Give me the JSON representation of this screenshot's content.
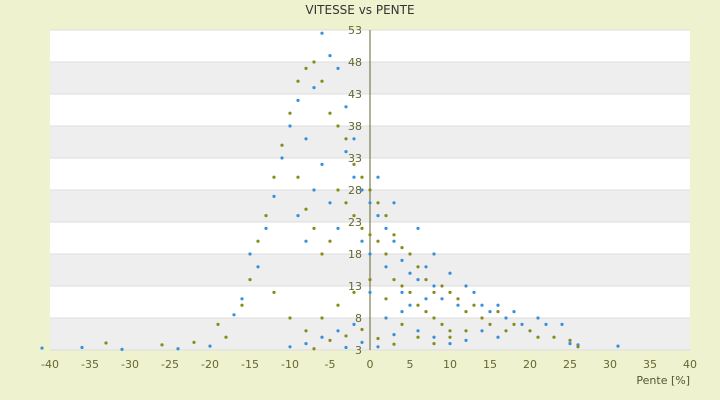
{
  "chart_data": {
    "type": "scatter",
    "title": "VITESSE vs PENTE",
    "xlabel": "Pente [%]",
    "ylabel": "",
    "xlim": [
      -40,
      40
    ],
    "ylim": [
      3,
      53
    ],
    "x_ticks": [
      "-40",
      "-35",
      "-30",
      "-25",
      "-20",
      "-15",
      "-10",
      "-5",
      "0",
      "5",
      "10",
      "15",
      "20",
      "25",
      "30",
      "35",
      "40"
    ],
    "y_ticks": [
      "3",
      "8",
      "13",
      "18",
      "23",
      "28",
      "33",
      "38",
      "43",
      "48",
      "53"
    ],
    "grid": true,
    "legend": "none",
    "colors": {
      "background": "#eef2cf",
      "plot_band_light": "#ffffff",
      "plot_band_dark": "#eeeeee",
      "axis": "#666633",
      "series_a": "#3a8fd9",
      "series_b": "#8a8a1a"
    },
    "series": [
      {
        "color": "#3a8fd9",
        "points": [
          [
            -41,
            3.3
          ],
          [
            -36,
            3.4
          ],
          [
            -31,
            3.1
          ],
          [
            -24,
            3.2
          ],
          [
            -20,
            3.6
          ],
          [
            -17,
            8.5
          ],
          [
            -16,
            11
          ],
          [
            -15,
            18
          ],
          [
            -14,
            16
          ],
          [
            -13,
            22
          ],
          [
            -12,
            27
          ],
          [
            -11,
            33
          ],
          [
            -10,
            38
          ],
          [
            -9,
            42
          ],
          [
            -8,
            36
          ],
          [
            -7,
            44
          ],
          [
            -6,
            52.5
          ],
          [
            -5,
            49
          ],
          [
            -4,
            47
          ],
          [
            -3,
            41
          ],
          [
            -2,
            30
          ],
          [
            -1,
            28
          ],
          [
            0,
            26
          ],
          [
            1,
            24
          ],
          [
            2,
            22
          ],
          [
            3,
            20
          ],
          [
            4,
            17
          ],
          [
            5,
            15
          ],
          [
            6,
            14
          ],
          [
            7,
            16
          ],
          [
            8,
            13
          ],
          [
            9,
            11
          ],
          [
            10,
            15
          ],
          [
            11,
            10
          ],
          [
            12,
            13
          ],
          [
            13,
            12
          ],
          [
            14,
            10
          ],
          [
            15,
            9
          ],
          [
            16,
            10
          ],
          [
            17,
            8
          ],
          [
            18,
            9
          ],
          [
            19,
            7
          ],
          [
            21,
            8
          ],
          [
            22,
            7
          ],
          [
            24,
            7
          ],
          [
            25,
            4
          ],
          [
            26,
            3.8
          ],
          [
            31,
            3.6
          ],
          [
            -9,
            24
          ],
          [
            -8,
            20
          ],
          [
            -7,
            28
          ],
          [
            -6,
            32
          ],
          [
            -5,
            26
          ],
          [
            -4,
            22
          ],
          [
            -3,
            34
          ],
          [
            -2,
            36
          ],
          [
            -1,
            20
          ],
          [
            0,
            18
          ],
          [
            1,
            30
          ],
          [
            2,
            16
          ],
          [
            3,
            26
          ],
          [
            4,
            12
          ],
          [
            5,
            10
          ],
          [
            6,
            22
          ],
          [
            7,
            11
          ],
          [
            8,
            18
          ],
          [
            -10,
            3.5
          ],
          [
            -8,
            4
          ],
          [
            -6,
            5
          ],
          [
            -4,
            6
          ],
          [
            -2,
            7
          ],
          [
            0,
            12
          ],
          [
            2,
            8
          ],
          [
            4,
            9
          ],
          [
            6,
            6
          ],
          [
            8,
            5
          ],
          [
            10,
            4
          ],
          [
            12,
            4.5
          ],
          [
            14,
            6
          ],
          [
            16,
            5
          ],
          [
            -3,
            3.4
          ],
          [
            -1,
            4.2
          ],
          [
            1,
            3.5
          ],
          [
            3,
            5.4
          ]
        ]
      },
      {
        "color": "#8a8a1a",
        "points": [
          [
            -33,
            4.1
          ],
          [
            -26,
            3.8
          ],
          [
            -22,
            4.2
          ],
          [
            -19,
            7
          ],
          [
            -18,
            5
          ],
          [
            -16,
            10
          ],
          [
            -15,
            14
          ],
          [
            -14,
            20
          ],
          [
            -13,
            24
          ],
          [
            -12,
            30
          ],
          [
            -11,
            35
          ],
          [
            -10,
            40
          ],
          [
            -9,
            45
          ],
          [
            -8,
            47
          ],
          [
            -7,
            48
          ],
          [
            -6,
            45
          ],
          [
            -5,
            40
          ],
          [
            -4,
            38
          ],
          [
            -3,
            36
          ],
          [
            -2,
            32
          ],
          [
            -1,
            30
          ],
          [
            0,
            28
          ],
          [
            1,
            26
          ],
          [
            2,
            24
          ],
          [
            3,
            21
          ],
          [
            4,
            19
          ],
          [
            5,
            18
          ],
          [
            6,
            16
          ],
          [
            7,
            14
          ],
          [
            8,
            12
          ],
          [
            9,
            13
          ],
          [
            10,
            12
          ],
          [
            11,
            11
          ],
          [
            12,
            9
          ],
          [
            13,
            10
          ],
          [
            14,
            8
          ],
          [
            15,
            7
          ],
          [
            16,
            9
          ],
          [
            17,
            6
          ],
          [
            18,
            7
          ],
          [
            20,
            6
          ],
          [
            21,
            5
          ],
          [
            23,
            5
          ],
          [
            25,
            4.5
          ],
          [
            26,
            3.5
          ],
          [
            -9,
            30
          ],
          [
            -8,
            25
          ],
          [
            -7,
            22
          ],
          [
            -6,
            18
          ],
          [
            -5,
            20
          ],
          [
            -4,
            28
          ],
          [
            -3,
            26
          ],
          [
            -2,
            24
          ],
          [
            -1,
            22
          ],
          [
            0,
            21
          ],
          [
            1,
            20
          ],
          [
            2,
            18
          ],
          [
            3,
            14
          ],
          [
            4,
            13
          ],
          [
            5,
            12
          ],
          [
            6,
            10
          ],
          [
            7,
            9
          ],
          [
            8,
            8
          ],
          [
            9,
            7
          ],
          [
            10,
            6
          ],
          [
            -12,
            12
          ],
          [
            -10,
            8
          ],
          [
            -8,
            6
          ],
          [
            -6,
            8
          ],
          [
            -4,
            10
          ],
          [
            -2,
            12
          ],
          [
            0,
            14
          ],
          [
            2,
            11
          ],
          [
            4,
            7
          ],
          [
            6,
            5
          ],
          [
            8,
            4
          ],
          [
            10,
            5
          ],
          [
            12,
            6
          ],
          [
            -7,
            3.2
          ],
          [
            -5,
            4.5
          ],
          [
            -3,
            5.2
          ],
          [
            -1,
            6.2
          ],
          [
            1,
            4.8
          ],
          [
            3,
            3.9
          ]
        ]
      }
    ]
  }
}
